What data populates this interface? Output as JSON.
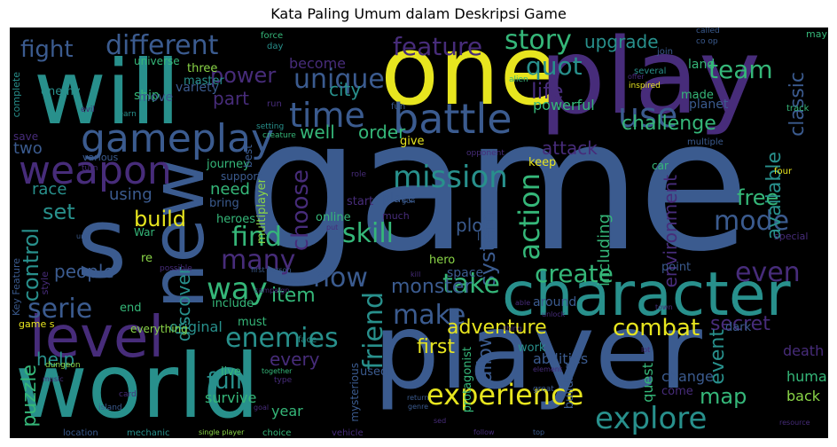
{
  "title": "Kata Paling Umum dalam Deskripsi Game",
  "colors": {
    "blue": "#3b5b8f",
    "teal": "#28908c",
    "green": "#35b779",
    "yellow": "#e7e51f",
    "purple": "#472c7a",
    "lime": "#8ad547"
  },
  "words": {
    "game": "game",
    "player": "player",
    "world": "world",
    "one": "one",
    "play": "play",
    "will": "will",
    "new": "new",
    "s": "s",
    "character": "character",
    "level": "level",
    "gameplay": "gameplay",
    "weapon": "weapon",
    "battle": "battle",
    "time": "time",
    "different": "different",
    "fight": "fight",
    "feature": "feature",
    "story": "story",
    "quot": "quot",
    "unique": "unique",
    "team": "team",
    "use": "use",
    "upgrade": "upgrade",
    "power": "power",
    "life": "life",
    "mission": "mission",
    "skill": "skill",
    "action": "action",
    "system": "system",
    "find": "find",
    "many": "many",
    "build": "build",
    "choose": "choose",
    "control": "control",
    "way": "way",
    "now": "now",
    "take": "take",
    "create": "create",
    "make": "make",
    "friend": "friend",
    "enemies": "enemies",
    "experience": "experience",
    "explore": "explore",
    "mode": "mode",
    "even": "even",
    "challenge": "challenge",
    "classic": "classic",
    "free": "free",
    "combat": "combat",
    "adventure": "adventure",
    "first": "first",
    "puzzle": "puzzle",
    "serie": "serie",
    "well": "well",
    "order": "order",
    "set": "set",
    "race": "race",
    "city": "city",
    "part": "part",
    "become": "become",
    "two": "two",
    "need": "need",
    "monster": "monster",
    "plot": "plot",
    "item": "item",
    "allow": "allow",
    "every": "every",
    "full": "full",
    "map": "map",
    "secret": "secret",
    "event": "event",
    "available": "available",
    "including": "including",
    "environment": "environment",
    "attack": "attack",
    "people": "people",
    "help": "help",
    "discover": "discover",
    "using": "using",
    "human": "human",
    "back": "back",
    "death": "death",
    "change": "change",
    "quest": "quest",
    "abilities": "abilities",
    "survive": "survive",
    "year": "year",
    "original": "original",
    "enemy": "enemy",
    "ship": "ship",
    "universe": "universe",
    "three": "three",
    "master": "master",
    "move": "move",
    "variety": "variety",
    "powerful": "powerful",
    "planet": "planet",
    "land": "land",
    "made": "made",
    "journey": "journey",
    "give": "give",
    "keep": "keep",
    "dark": "dark",
    "come": "come",
    "used": "used",
    "mysterious": "mysterious",
    "live": "live",
    "end": "end",
    "everything": "everything",
    "include": "include",
    "must": "must",
    "multiplayer": "multiplayer",
    "online": "online",
    "place": "place",
    "heroes": "heroes",
    "bring": "bring",
    "support": "support",
    "start": "start",
    "hero": "hero",
    "space": "space",
    "around": "around",
    "point": "point",
    "work": "work",
    "protagonist": "protagonist",
    "building": "building",
    "complete": "complete",
    "key_feature": "Key Feature",
    "game_s": "game s",
    "style": "style",
    "war": "War",
    "re": "re",
    "various": "various",
    "save": "save",
    "best": "best",
    "ll": "ll",
    "much": "much",
    "special": "special",
    "four": "four",
    "car": "car",
    "multiple": "multiple",
    "opponent": "opponent",
    "fun": "fun",
    "run": "run",
    "learn": "learn",
    "evil": "evil",
    "force": "force",
    "day": "day",
    "alien": "alien",
    "several": "several",
    "inspired": "inspired",
    "join": "join",
    "called": "called",
    "co_op": "co op",
    "may": "may",
    "track": "track",
    "offer": "offer",
    "setting": "setting",
    "creature": "creature",
    "role": "role",
    "gun": "gun",
    "turn": "turn",
    "unit": "unit",
    "possible": "possible",
    "first_person": "first person",
    "based": "based",
    "kill": "kill",
    "face": "face",
    "campaign": "campaign",
    "card": "card",
    "island": "island",
    "dungeon": "dungeon",
    "location": "location",
    "mechanic": "mechanic",
    "single_player": "single player",
    "choice": "choice",
    "vehicle": "vehicle",
    "together": "together",
    "type": "type",
    "goal": "goal",
    "return": "return",
    "genre": "genre",
    "great": "great",
    "follow": "follow",
    "top": "top",
    "lot": "lot",
    "thing": "thing",
    "able": "able",
    "town": "town",
    "resource": "resource",
    "element": "element",
    "put": "put",
    "music": "music",
    "sed": "sed",
    "unlock": "unlock"
  }
}
